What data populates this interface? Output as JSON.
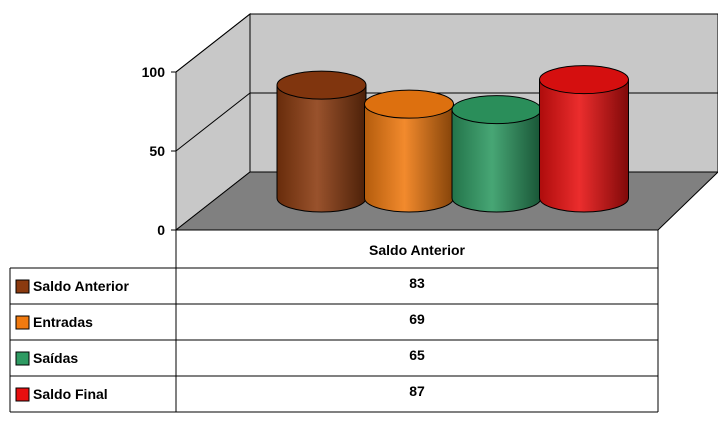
{
  "chart_data": {
    "type": "bar",
    "style": "3d-cylinder",
    "categories": [
      "Saldo Anterior"
    ],
    "series": [
      {
        "name": "Saldo Anterior",
        "values": [
          83
        ],
        "color": "#8B3A0F"
      },
      {
        "name": "Entradas",
        "values": [
          69
        ],
        "color": "#F07A10"
      },
      {
        "name": "Saídas",
        "values": [
          65
        ],
        "color": "#2E9A62"
      },
      {
        "name": "Saldo Final",
        "values": [
          87
        ],
        "color": "#E81010"
      }
    ],
    "ylim": [
      0,
      100
    ],
    "yticks": [
      "0",
      "50",
      "100"
    ],
    "grid": true,
    "legend": "data-table-left",
    "wall_color": "#C8C8C8",
    "floor_color": "#808080"
  }
}
